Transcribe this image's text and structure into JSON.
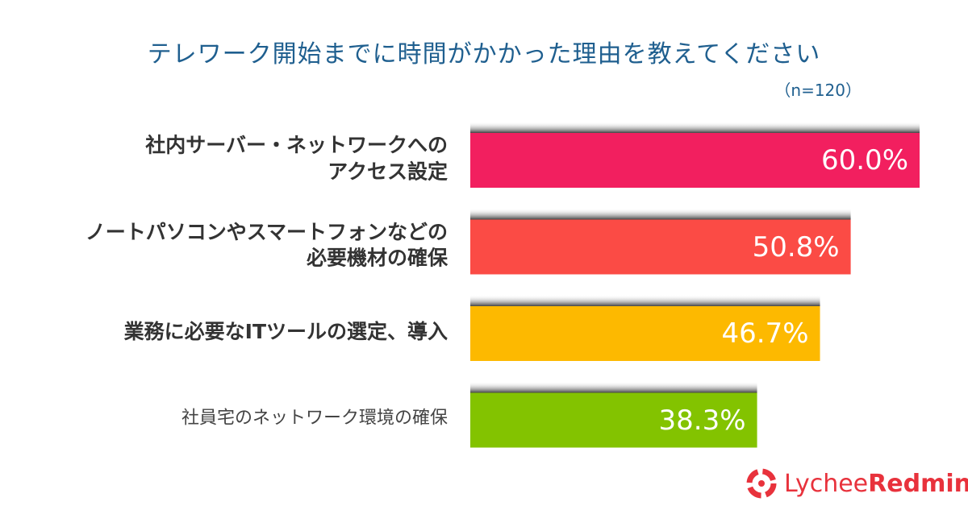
{
  "chart_data": {
    "type": "hbar",
    "title": "テレワーク開始までに時間がかかった理由を教えてください",
    "subtitle": "（n=120）",
    "categories": [
      "社内サーバー・ネットワークへの\nアクセス設定",
      "ノートパソコンやスマートフォンなどの\n必要機材の確保",
      "業務に必要なITツールの選定、導入",
      "社員宅のネットワーク環境の確保"
    ],
    "values": [
      60.0,
      50.8,
      46.7,
      38.3
    ],
    "value_labels": [
      "60.0%",
      "50.8%",
      "46.7%",
      "38.3%"
    ],
    "colors": [
      "#f21f5f",
      "#fb4b45",
      "#fdb900",
      "#83c300"
    ],
    "xlim": [
      0,
      60
    ]
  },
  "logo": {
    "part1": "Lychee",
    "part2": "Redmine"
  }
}
